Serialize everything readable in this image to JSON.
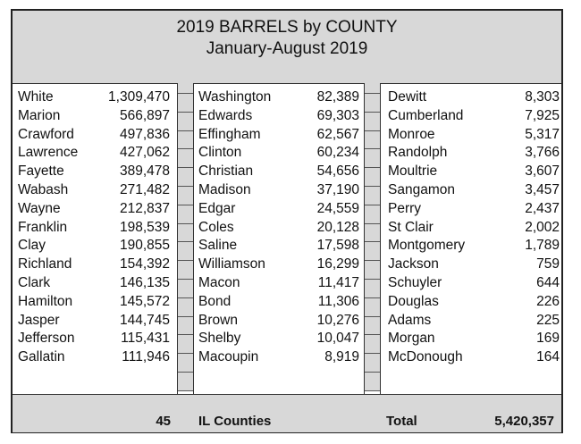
{
  "header": {
    "title": "2019 BARRELS by COUNTY",
    "subtitle": "January-August 2019"
  },
  "columns": [
    {
      "rows": [
        {
          "name": "White",
          "value": "1,309,470"
        },
        {
          "name": "Marion",
          "value": "566,897"
        },
        {
          "name": "Crawford",
          "value": "497,836"
        },
        {
          "name": "Lawrence",
          "value": "427,062"
        },
        {
          "name": "Fayette",
          "value": "389,478"
        },
        {
          "name": "Wabash",
          "value": "271,482"
        },
        {
          "name": "Wayne",
          "value": "212,837"
        },
        {
          "name": "Franklin",
          "value": "198,539"
        },
        {
          "name": "Clay",
          "value": "190,855"
        },
        {
          "name": "Richland",
          "value": "154,392"
        },
        {
          "name": "Clark",
          "value": "146,135"
        },
        {
          "name": "Hamilton",
          "value": "145,572"
        },
        {
          "name": "Jasper",
          "value": "144,745"
        },
        {
          "name": "Jefferson",
          "value": "115,431"
        },
        {
          "name": "Gallatin",
          "value": "111,946"
        }
      ]
    },
    {
      "rows": [
        {
          "name": "Washington",
          "value": "82,389"
        },
        {
          "name": "Edwards",
          "value": "69,303"
        },
        {
          "name": "Effingham",
          "value": "62,567"
        },
        {
          "name": "Clinton",
          "value": "60,234"
        },
        {
          "name": "Christian",
          "value": "54,656"
        },
        {
          "name": "Madison",
          "value": "37,190"
        },
        {
          "name": "Edgar",
          "value": "24,559"
        },
        {
          "name": "Coles",
          "value": "20,128"
        },
        {
          "name": "Saline",
          "value": "17,598"
        },
        {
          "name": "Williamson",
          "value": "16,299"
        },
        {
          "name": "Macon",
          "value": "11,417"
        },
        {
          "name": "Bond",
          "value": "11,306"
        },
        {
          "name": "Brown",
          "value": "10,276"
        },
        {
          "name": "Shelby",
          "value": "10,047"
        },
        {
          "name": "Macoupin",
          "value": "8,919"
        }
      ]
    },
    {
      "rows": [
        {
          "name": "Dewitt",
          "value": "8,303"
        },
        {
          "name": "Cumberland",
          "value": "7,925"
        },
        {
          "name": "Monroe",
          "value": "5,317"
        },
        {
          "name": "Randolph",
          "value": "3,766"
        },
        {
          "name": "Moultrie",
          "value": "3,607"
        },
        {
          "name": "Sangamon",
          "value": "3,457"
        },
        {
          "name": "Perry",
          "value": "2,437"
        },
        {
          "name": "St Clair",
          "value": "2,002"
        },
        {
          "name": "Montgomery",
          "value": "1,789"
        },
        {
          "name": "Jackson",
          "value": "759"
        },
        {
          "name": "Schuyler",
          "value": "644"
        },
        {
          "name": "Douglas",
          "value": "226"
        },
        {
          "name": "Adams",
          "value": "225"
        },
        {
          "name": "Morgan",
          "value": "169"
        },
        {
          "name": "McDonough",
          "value": "164"
        }
      ]
    }
  ],
  "footer": {
    "county_count": "45",
    "county_label": "IL Counties",
    "total_label": "Total",
    "total_value": "5,420,357"
  }
}
